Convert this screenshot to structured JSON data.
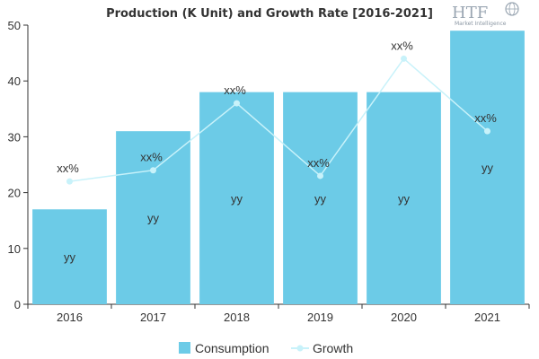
{
  "chart_data": {
    "type": "bar",
    "title": "Production (K Unit) and Growth Rate [2016-2021]",
    "xlabel": "",
    "ylabel": "",
    "categories": [
      "2016",
      "2017",
      "2018",
      "2019",
      "2020",
      "2021"
    ],
    "ylim": [
      0,
      50
    ],
    "yticks": [
      0,
      10,
      20,
      30,
      40,
      50
    ],
    "grid": false,
    "legend_position": "bottom-center",
    "series": [
      {
        "name": "Consumption",
        "type": "bar",
        "color": "#6ccbe7",
        "values": [
          17,
          31,
          38,
          38,
          38,
          49
        ],
        "labels": [
          "yy",
          "yy",
          "yy",
          "yy",
          "yy",
          "yy"
        ]
      },
      {
        "name": "Growth",
        "type": "line",
        "color": "#c8f2fa",
        "values": [
          22,
          24,
          36,
          23,
          44,
          31
        ],
        "labels": [
          "xx%",
          "xx%",
          "xx%",
          "xx%",
          "xx%",
          "xx%"
        ]
      }
    ]
  },
  "logo": {
    "mark": "HTF",
    "tagline": "Market Intelligence",
    "icon": "globe-icon"
  }
}
